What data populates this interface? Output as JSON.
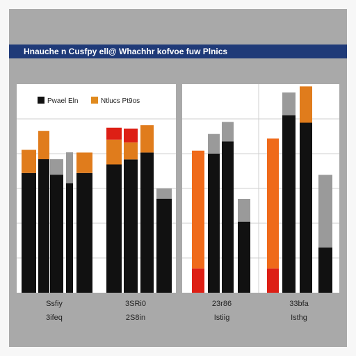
{
  "title": "Hnauche n Cusfpy ell@ Whachhr kofvoe fuw Plnics",
  "legend": [
    {
      "label": "Pwael Eln",
      "color": "#111111"
    },
    {
      "label": "Ntlucs Pt9os",
      "color": "#e08a1e"
    }
  ],
  "colors": {
    "black": "#111111",
    "dark_orange": "#e07c1c",
    "orange": "#ef6a1a",
    "red": "#dd1f15",
    "gray": "#9a9a9a",
    "title_band": "#1f3a78",
    "frame": "#a9a9a9",
    "background": "#f7f7f7"
  },
  "chart_data": [
    {
      "type": "bar",
      "title": "",
      "ylim": [
        0,
        100
      ],
      "grid": true,
      "legend_position": "top",
      "x_labels": [
        {
          "line1": "Ssfiy",
          "line2": "3ifeq"
        },
        {
          "line1": "3SRi0",
          "line2": "2S8in"
        }
      ],
      "bars": [
        {
          "segments": [
            {
              "v": 57.4,
              "c": "black"
            },
            {
              "v": 11.1,
              "c": "dark_orange"
            }
          ]
        },
        {
          "segments": [
            {
              "v": 64.0,
              "c": "black"
            },
            {
              "v": 13.6,
              "c": "dark_orange"
            }
          ]
        },
        {
          "segments": [
            {
              "v": 56.6,
              "c": "black"
            },
            {
              "v": 7.4,
              "c": "gray"
            }
          ]
        },
        {
          "segments": [
            {
              "v": 52.5,
              "c": "black"
            },
            {
              "v": 14.8,
              "c": "gray"
            }
          ]
        },
        {
          "segments": [
            {
              "v": 57.4,
              "c": "black"
            },
            {
              "v": 9.8,
              "c": "dark_orange"
            }
          ]
        },
        {
          "segments": [
            {
              "v": 61.5,
              "c": "black"
            },
            {
              "v": 11.9,
              "c": "dark_orange"
            },
            {
              "v": 5.7,
              "c": "red"
            }
          ]
        },
        {
          "segments": [
            {
              "v": 63.9,
              "c": "black"
            },
            {
              "v": 8.2,
              "c": "dark_orange"
            },
            {
              "v": 6.6,
              "c": "red"
            }
          ]
        },
        {
          "segments": [
            {
              "v": 67.2,
              "c": "black"
            },
            {
              "v": 13.1,
              "c": "dark_orange"
            }
          ]
        },
        {
          "segments": [
            {
              "v": 45.1,
              "c": "black"
            },
            {
              "v": 4.9,
              "c": "gray"
            }
          ]
        }
      ]
    },
    {
      "type": "bar",
      "title": "",
      "ylim": [
        0,
        100
      ],
      "grid": true,
      "x_labels": [
        {
          "line1": "23r86",
          "line2": "Istiig"
        },
        {
          "line1": "33bfa",
          "line2": "Isthg"
        }
      ],
      "bars": [
        {
          "segments": [
            {
              "v": 11.6,
              "c": "red"
            },
            {
              "v": 56.5,
              "c": "orange"
            }
          ]
        },
        {
          "segments": [
            {
              "v": 66.7,
              "c": "black"
            },
            {
              "v": 9.4,
              "c": "gray"
            }
          ]
        },
        {
          "segments": [
            {
              "v": 72.5,
              "c": "black"
            },
            {
              "v": 9.4,
              "c": "gray"
            }
          ]
        },
        {
          "segments": [
            {
              "v": 34.1,
              "c": "black"
            },
            {
              "v": 10.9,
              "c": "gray"
            }
          ]
        },
        {
          "segments": [
            {
              "v": 11.6,
              "c": "red"
            },
            {
              "v": 62.3,
              "c": "orange"
            }
          ]
        },
        {
          "segments": [
            {
              "v": 85.1,
              "c": "black"
            },
            {
              "v": 10.9,
              "c": "gray"
            }
          ]
        },
        {
          "segments": [
            {
              "v": 81.5,
              "c": "black"
            },
            {
              "v": 17.4,
              "c": "dark_orange"
            }
          ]
        },
        {
          "segments": [
            {
              "v": 21.7,
              "c": "black"
            },
            {
              "v": 34.8,
              "c": "gray"
            }
          ]
        }
      ]
    }
  ]
}
